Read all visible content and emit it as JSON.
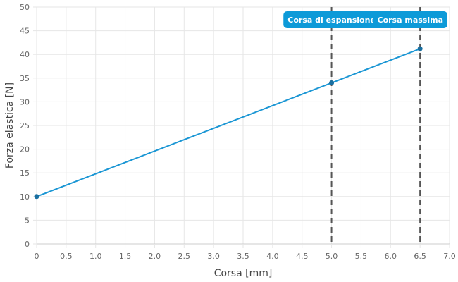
{
  "chart_data": {
    "type": "line",
    "xlabel": "Corsa [mm]",
    "ylabel": "Forza elastica [N]",
    "xlim": [
      0,
      7
    ],
    "ylim": [
      0,
      50
    ],
    "x_ticks": [
      "0",
      "0.5",
      "1.0",
      "1.5",
      "2.0",
      "2.5",
      "3.0",
      "3.5",
      "4.0",
      "4.5",
      "5.0",
      "5.5",
      "6.0",
      "6.5",
      "7.0"
    ],
    "y_ticks": [
      "0",
      "5",
      "10",
      "15",
      "20",
      "25",
      "30",
      "35",
      "40",
      "45",
      "50"
    ],
    "grid": true,
    "series": [
      {
        "color": "#1a96d4",
        "points": [
          {
            "x": 0,
            "y": 10
          },
          {
            "x": 5.0,
            "y": 34
          },
          {
            "x": 6.5,
            "y": 41.2
          }
        ]
      }
    ],
    "annotations": [
      {
        "x": 5.0,
        "label": "Corsa di espansione"
      },
      {
        "x": 6.5,
        "label": "Corsa massima"
      }
    ],
    "colors": {
      "line": "#1a96d4",
      "marker": "#1a6fa0",
      "annotation_bg": "#0d9ad8",
      "annotation_line": "#555555",
      "grid": "#e6e6e6"
    }
  }
}
